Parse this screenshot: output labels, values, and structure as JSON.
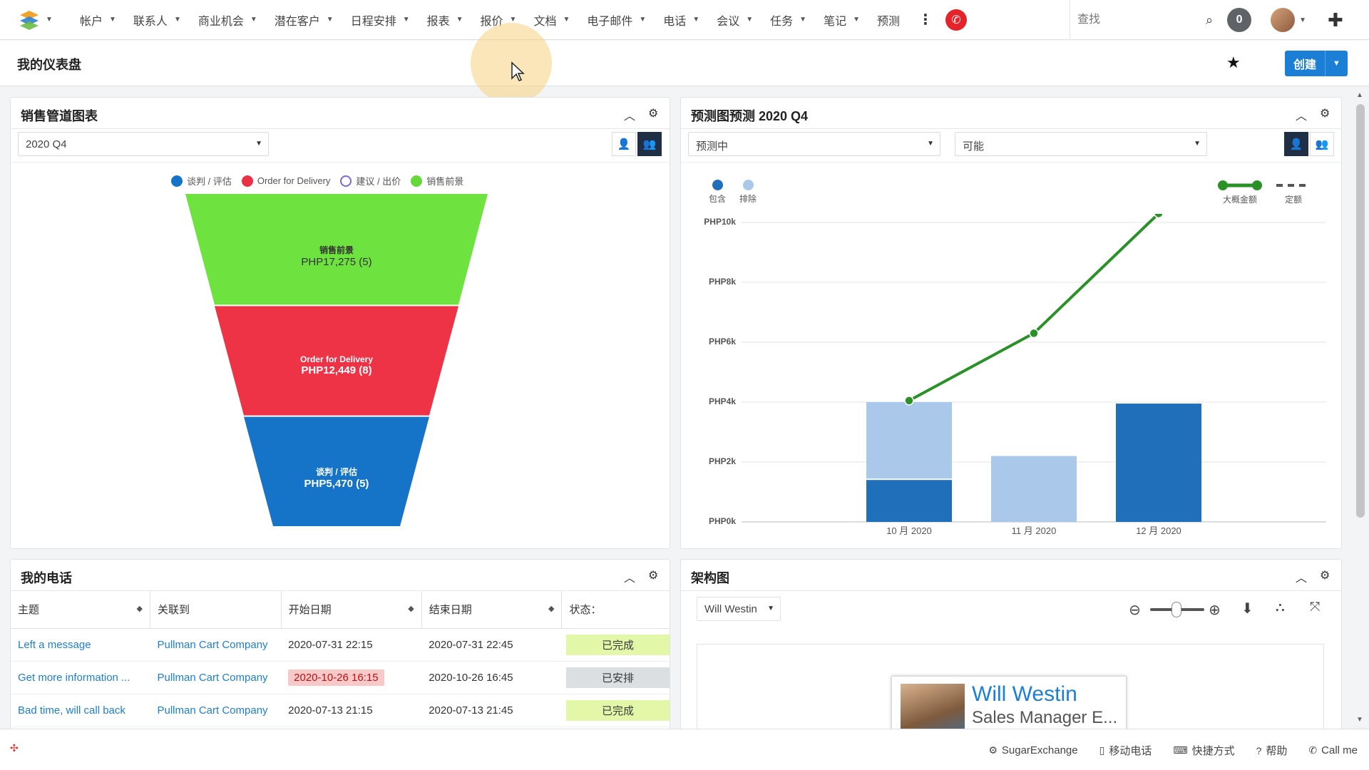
{
  "nav": {
    "menu": [
      {
        "label": "帐户",
        "dropdown": true
      },
      {
        "label": "联系人",
        "dropdown": true
      },
      {
        "label": "商业机会",
        "dropdown": true
      },
      {
        "label": "潜在客户",
        "dropdown": true
      },
      {
        "label": "日程安排",
        "dropdown": true
      },
      {
        "label": "报表",
        "dropdown": true
      },
      {
        "label": "报价",
        "dropdown": true
      },
      {
        "label": "文档",
        "dropdown": true
      },
      {
        "label": "电子邮件",
        "dropdown": true
      },
      {
        "label": "电话",
        "dropdown": true
      },
      {
        "label": "会议",
        "dropdown": true
      },
      {
        "label": "任务",
        "dropdown": true
      },
      {
        "label": "笔记",
        "dropdown": true
      },
      {
        "label": "预测",
        "dropdown": false
      }
    ],
    "search_placeholder": "查找",
    "notifications": "0"
  },
  "page": {
    "title": "我的仪表盘",
    "create_label": "创建"
  },
  "pipeline": {
    "title": "销售管道图表",
    "period": "2020 Q4",
    "legend": [
      {
        "label": "谈判 / 评估",
        "color": "#1574c8",
        "hollow": false
      },
      {
        "label": "Order for Delivery",
        "color": "#ec3045",
        "hollow": false
      },
      {
        "label": "建议 / 出价",
        "color": "#7d67d4",
        "hollow": true
      },
      {
        "label": "销售前景",
        "color": "#67d83a",
        "hollow": false
      }
    ],
    "chart_data": {
      "type": "funnel",
      "stages": [
        {
          "name": "销售前景",
          "amount": "PHP17,275",
          "count": 5,
          "color": "#6ee23f",
          "text_color": "#333333"
        },
        {
          "name": "Order for Delivery",
          "amount": "PHP12,449",
          "count": 8,
          "color": "#ef3347",
          "text_color": "#ffffff"
        },
        {
          "name": "谈判 / 评估",
          "amount": "PHP5,470",
          "count": 5,
          "color": "#1574c8",
          "text_color": "#ffffff"
        }
      ]
    }
  },
  "forecast": {
    "title": "预测图预测 2020 Q4",
    "filter1": "预测中",
    "filter2": "可能",
    "legend": {
      "include": "包含",
      "exclude": "排除",
      "likely": "大概金额",
      "quota": "定额"
    },
    "chart_data": {
      "type": "bar",
      "categories": [
        "10 月 2020",
        "11 月 2020",
        "12 月 2020"
      ],
      "y_ticks": [
        "PHP10k",
        "PHP8k",
        "PHP6k",
        "PHP4k",
        "PHP2k",
        "PHP0k"
      ],
      "ylim": [
        0,
        10000
      ],
      "series": [
        {
          "name": "包含",
          "values": [
            1400,
            0,
            3950
          ],
          "color": "#1f6fba"
        },
        {
          "name": "排除",
          "values": [
            2600,
            2200,
            0
          ],
          "color": "#aac8ea"
        },
        {
          "name": "大概金额",
          "type": "line",
          "values": [
            4050,
            6300,
            10300
          ],
          "color": "#2a9127"
        }
      ]
    }
  },
  "calls": {
    "title": "我的电话",
    "columns": [
      "主题",
      "关联到",
      "开始日期",
      "结束日期",
      "状态："
    ],
    "rows": [
      {
        "subject": "Left a message",
        "related": "Pullman Cart Company",
        "start": "2020-07-31 22:15",
        "end": "2020-07-31 22:45",
        "status": "已完成",
        "status_type": "done",
        "start_overdue": false
      },
      {
        "subject": "Get more information ...",
        "related": "Pullman Cart Company",
        "start": "2020-10-26 16:15",
        "end": "2020-10-26 16:45",
        "status": "已安排",
        "status_type": "planned",
        "start_overdue": true
      },
      {
        "subject": "Bad time, will call back",
        "related": "Pullman Cart Company",
        "start": "2020-07-13 21:15",
        "end": "2020-07-13 21:45",
        "status": "已完成",
        "status_type": "done",
        "start_overdue": false
      }
    ]
  },
  "org": {
    "title": "架构图",
    "user_select": "Will Westin",
    "card_name": "Will Westin",
    "card_role": "Sales Manager E..."
  },
  "footer": {
    "links": [
      {
        "label": "SugarExchange",
        "icon": "gift-icon",
        "glyph": "⚙"
      },
      {
        "label": "移动电话",
        "icon": "mobile-icon",
        "glyph": "▯"
      },
      {
        "label": "快捷方式",
        "icon": "keyboard-icon",
        "glyph": "⌨"
      },
      {
        "label": "帮助",
        "icon": "help-icon",
        "glyph": "?"
      },
      {
        "label": "Call me",
        "icon": "phone-icon",
        "glyph": "✆"
      }
    ]
  }
}
